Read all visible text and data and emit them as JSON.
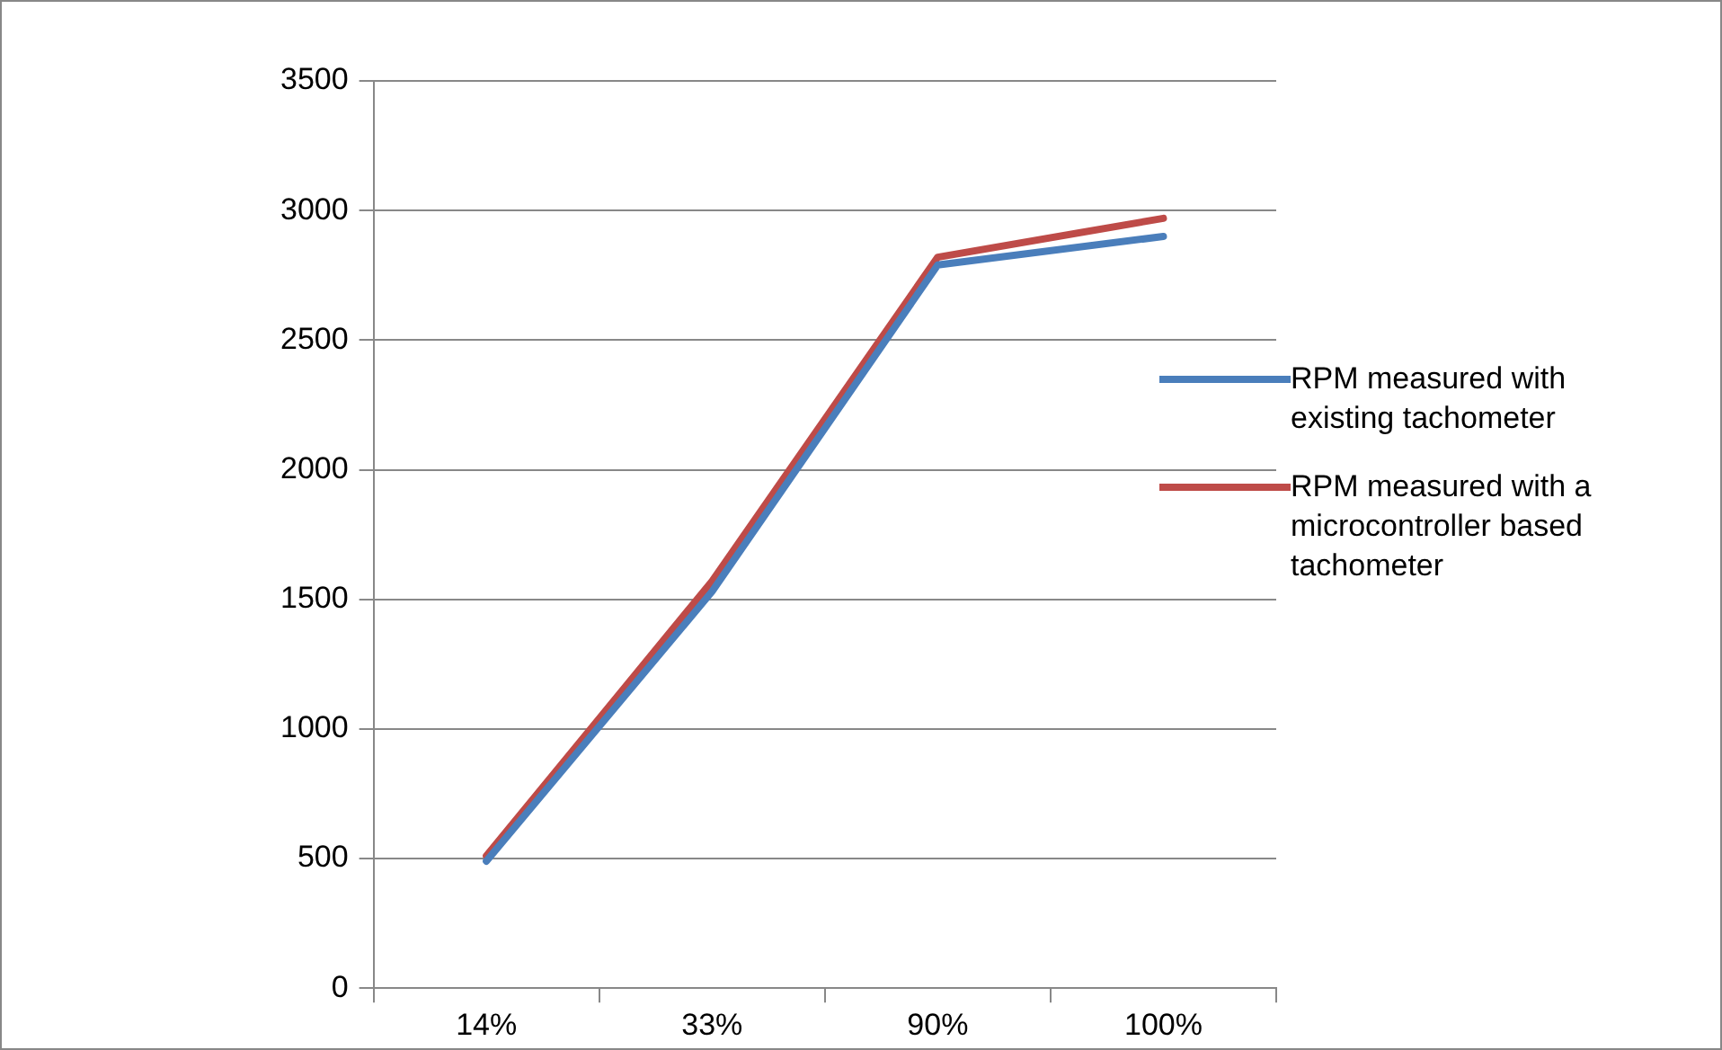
{
  "chart_data": {
    "type": "line",
    "categories": [
      "14%",
      "33%",
      "90%",
      "100%"
    ],
    "series": [
      {
        "name": "RPM measured with existing tachometer",
        "color": "#4a7ebb",
        "values": [
          490,
          1530,
          2790,
          2900
        ]
      },
      {
        "name": "RPM measured with a microcontroller based tachometer",
        "color": "#be4b48",
        "values": [
          510,
          1570,
          2820,
          2970
        ]
      }
    ],
    "ylim": [
      0,
      3500
    ],
    "yticks": [
      0,
      500,
      1000,
      1500,
      2000,
      2500,
      3000,
      3500
    ],
    "grid": "y",
    "legend": "right",
    "marker": "none",
    "line_style": "solid"
  }
}
